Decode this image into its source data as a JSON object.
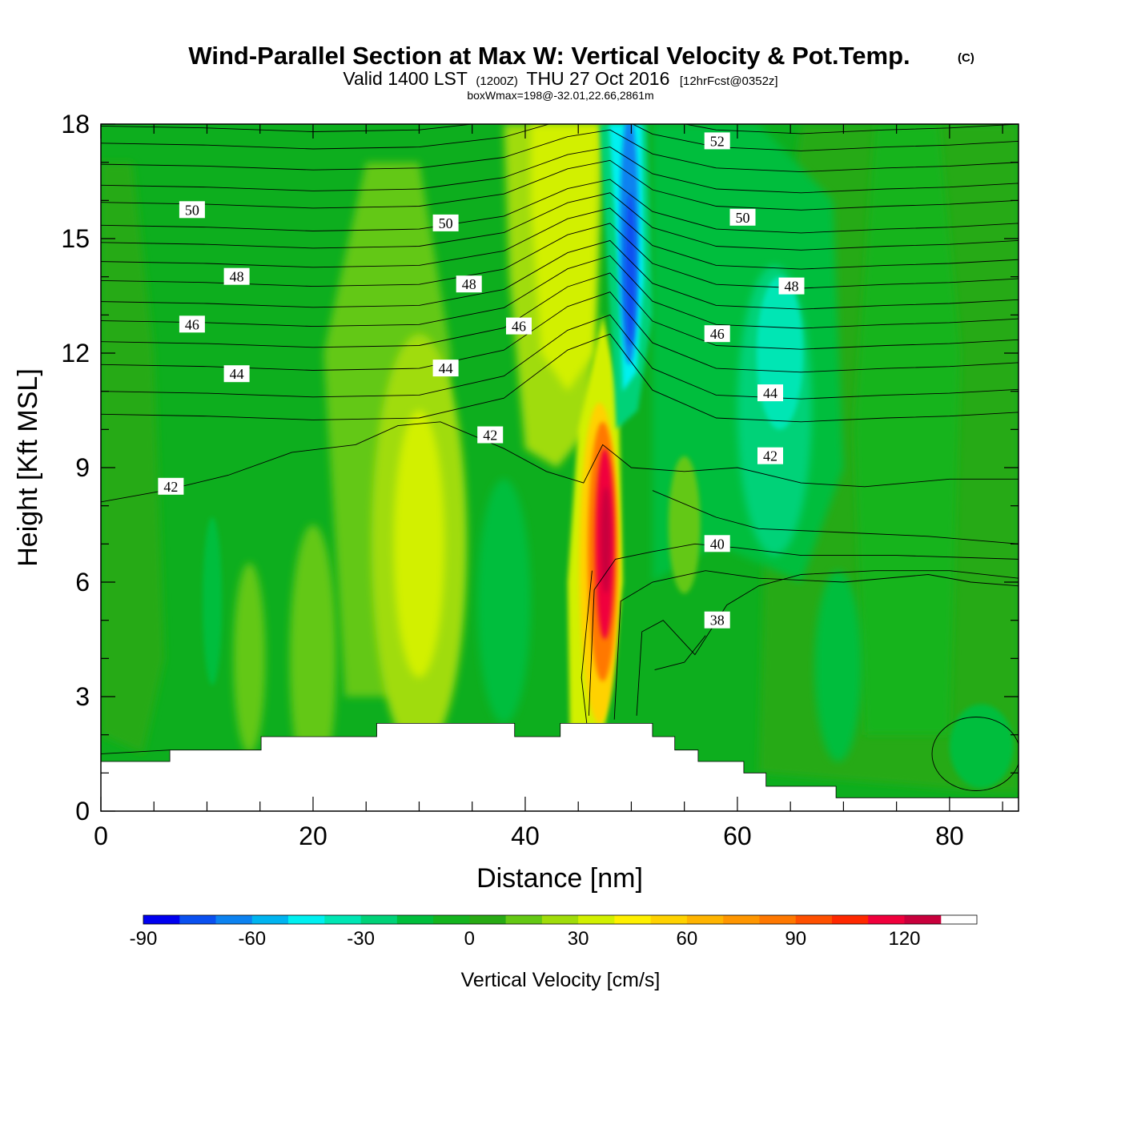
{
  "chart_data": {
    "type": "heatmap",
    "title": "Wind-Parallel Section at Max W: Vertical Velocity & Pot.Temp.",
    "title_mark": "(C)",
    "subtitle": {
      "valid_prefix": "Valid 1400 LST",
      "utc": "(1200Z)",
      "date": "THU 27 Oct 2016",
      "forecast": "[12hrFcst@0352z]"
    },
    "annotation": "boxWmax=198@-32.01,22.66,2861m",
    "xlabel": "Distance [nm]",
    "ylabel": "Height [Kft MSL]",
    "xlim": [
      0,
      86.5
    ],
    "ylim": [
      0,
      18
    ],
    "x_ticks": [
      0,
      20,
      40,
      60,
      80
    ],
    "y_ticks": [
      0,
      3,
      6,
      9,
      12,
      15,
      18
    ],
    "colorbar": {
      "title": "Vertical Velocity [cm/s]",
      "levels": [
        -90,
        -80,
        -70,
        -60,
        -50,
        -40,
        -30,
        -20,
        -10,
        0,
        10,
        20,
        30,
        40,
        50,
        60,
        70,
        80,
        90,
        100,
        110,
        120,
        130,
        140
      ],
      "tick_labels": [
        "-90",
        "-60",
        "-30",
        "0",
        "30",
        "60",
        "90",
        "120"
      ],
      "colors": [
        "#0000f0",
        "#0a50f0",
        "#0c82f0",
        "#00b4f0",
        "#00f0f0",
        "#00e6b4",
        "#00d278",
        "#00be3c",
        "#14b41e",
        "#28aa14",
        "#64c814",
        "#a0dc0a",
        "#d2f000",
        "#fff000",
        "#ffd200",
        "#ffb400",
        "#ff9600",
        "#ff7800",
        "#ff5000",
        "#ff2800",
        "#f0003c",
        "#c8003c"
      ]
    },
    "theta_contour_labels": [
      {
        "value": "52",
        "x": 58.1,
        "y": 17.55
      },
      {
        "value": "50",
        "x": 8.6,
        "y": 15.75
      },
      {
        "value": "50",
        "x": 32.5,
        "y": 15.4
      },
      {
        "value": "50",
        "x": 60.5,
        "y": 15.55
      },
      {
        "value": "48",
        "x": 12.8,
        "y": 14.0
      },
      {
        "value": "48",
        "x": 34.7,
        "y": 13.8
      },
      {
        "value": "48",
        "x": 65.1,
        "y": 13.75
      },
      {
        "value": "46",
        "x": 8.6,
        "y": 12.75
      },
      {
        "value": "46",
        "x": 39.4,
        "y": 12.7
      },
      {
        "value": "46",
        "x": 58.1,
        "y": 12.5
      },
      {
        "value": "44",
        "x": 12.8,
        "y": 11.45
      },
      {
        "value": "44",
        "x": 32.5,
        "y": 11.6
      },
      {
        "value": "44",
        "x": 63.1,
        "y": 10.95
      },
      {
        "value": "42",
        "x": 6.6,
        "y": 8.5
      },
      {
        "value": "42",
        "x": 36.7,
        "y": 9.85
      },
      {
        "value": "42",
        "x": 63.1,
        "y": 9.3
      },
      {
        "value": "40",
        "x": 58.1,
        "y": 7.0
      },
      {
        "value": "38",
        "x": 58.1,
        "y": 5.0
      }
    ],
    "vertical_velocity_features": [
      {
        "kind": "updraft_core",
        "x_center": 47.3,
        "y_center": 6.8,
        "max_value": 140
      },
      {
        "kind": "downdraft_core",
        "x_center": 49.5,
        "y_center": 14.5,
        "min_value": -80
      },
      {
        "kind": "updraft",
        "x_center": 30,
        "y_center": 7,
        "max_value": 30
      },
      {
        "kind": "updraft_plume_upper",
        "x_center": 44,
        "y_center": 15,
        "max_value": 40
      }
    ],
    "terrain_heights_kft": [
      {
        "x0": 0,
        "x1": 6.5,
        "h": 1.3
      },
      {
        "x0": 6.5,
        "x1": 15.1,
        "h": 1.6
      },
      {
        "x0": 15.1,
        "x1": 26.0,
        "h": 1.95
      },
      {
        "x0": 26.0,
        "x1": 39.0,
        "h": 2.3
      },
      {
        "x0": 39.0,
        "x1": 43.3,
        "h": 1.95
      },
      {
        "x0": 43.3,
        "x1": 52.0,
        "h": 2.3
      },
      {
        "x0": 52.0,
        "x1": 54.1,
        "h": 1.95
      },
      {
        "x0": 54.1,
        "x1": 56.3,
        "h": 1.6
      },
      {
        "x0": 56.3,
        "x1": 60.6,
        "h": 1.3
      },
      {
        "x0": 60.6,
        "x1": 62.7,
        "h": 1.0
      },
      {
        "x0": 62.7,
        "x1": 69.3,
        "h": 0.65
      },
      {
        "x0": 69.3,
        "x1": 86.5,
        "h": 0.35
      }
    ]
  }
}
